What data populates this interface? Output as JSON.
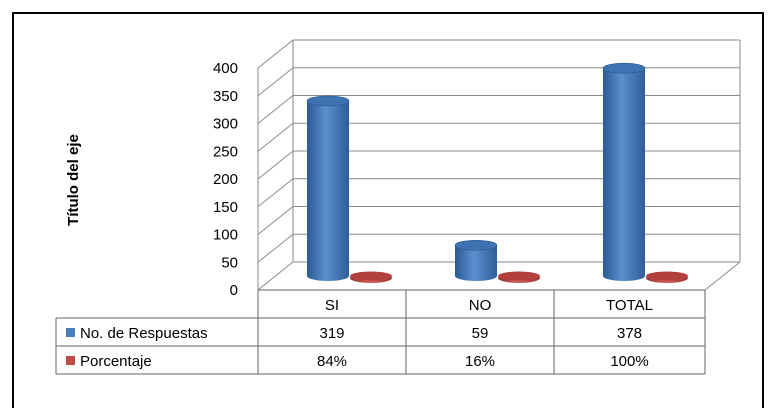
{
  "chart_data": {
    "type": "bar",
    "title": "",
    "xlabel": "",
    "ylabel": "Título del eje",
    "ylim": [
      0,
      400
    ],
    "yticks": [
      0,
      50,
      100,
      150,
      200,
      250,
      300,
      350,
      400
    ],
    "categories": [
      "SI",
      "NO",
      "TOTAL"
    ],
    "series": [
      {
        "name": "No. de Respuestas",
        "values": [
          319,
          59,
          378
        ],
        "labels": [
          "319",
          "59",
          "378"
        ],
        "color": "#4a7ebb"
      },
      {
        "name": "Porcentaje",
        "values": [
          0.84,
          0.16,
          1.0
        ],
        "labels": [
          "84%",
          "16%",
          "100%"
        ],
        "color": "#be4b48"
      }
    ],
    "grid": true,
    "legend": "data-table",
    "style": "3d-cylinder"
  }
}
